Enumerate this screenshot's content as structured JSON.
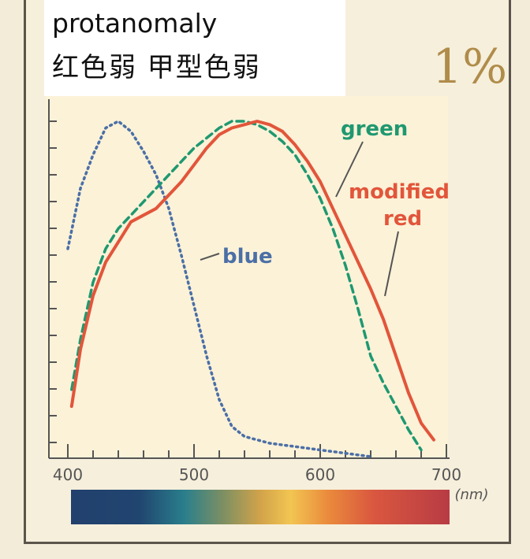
{
  "header": {
    "title_en": "protanomaly",
    "title_zh": "红色弱  甲型色弱",
    "percent": "1%"
  },
  "colors": {
    "blue_series": "#4b6fa6",
    "green_series": "#1f9870",
    "red_series": "#e2553a",
    "frame": "#5a544c",
    "percent": "#b08c4a"
  },
  "chart_data": {
    "type": "line",
    "x_unit": "(nm)",
    "xlim": [
      400,
      700
    ],
    "ylim": [
      0,
      1
    ],
    "x_ticks": [
      "400",
      "500",
      "600",
      "700"
    ],
    "grid": false,
    "legend": "inline labels",
    "series": [
      {
        "name": "blue",
        "style": "dotted",
        "x": [
          400,
          410,
          420,
          430,
          440,
          450,
          460,
          470,
          480,
          490,
          500,
          510,
          520,
          530,
          540,
          560,
          580,
          600,
          620,
          640
        ],
        "y": [
          0.62,
          0.8,
          0.9,
          0.98,
          1.0,
          0.97,
          0.91,
          0.84,
          0.74,
          0.6,
          0.45,
          0.3,
          0.17,
          0.09,
          0.06,
          0.04,
          0.03,
          0.02,
          0.01,
          0.0
        ]
      },
      {
        "name": "green",
        "style": "dashed",
        "x": [
          403,
          410,
          420,
          430,
          440,
          450,
          460,
          470,
          480,
          490,
          500,
          510,
          520,
          530,
          540,
          550,
          560,
          570,
          580,
          590,
          600,
          610,
          620,
          630,
          640,
          650,
          660,
          670,
          680
        ],
        "y": [
          0.2,
          0.35,
          0.52,
          0.62,
          0.68,
          0.72,
          0.76,
          0.8,
          0.84,
          0.88,
          0.92,
          0.95,
          0.98,
          1.0,
          1.0,
          0.99,
          0.97,
          0.94,
          0.9,
          0.84,
          0.77,
          0.68,
          0.57,
          0.44,
          0.3,
          0.22,
          0.15,
          0.08,
          0.02
        ]
      },
      {
        "name": "modified red",
        "style": "solid",
        "x": [
          403,
          410,
          420,
          430,
          440,
          450,
          460,
          470,
          480,
          490,
          500,
          510,
          520,
          530,
          540,
          550,
          560,
          570,
          580,
          590,
          600,
          610,
          620,
          630,
          640,
          650,
          660,
          670,
          680,
          690
        ],
        "y": [
          0.15,
          0.32,
          0.48,
          0.58,
          0.64,
          0.7,
          0.72,
          0.74,
          0.78,
          0.82,
          0.87,
          0.92,
          0.96,
          0.98,
          0.99,
          1.0,
          0.99,
          0.97,
          0.93,
          0.88,
          0.82,
          0.74,
          0.66,
          0.58,
          0.5,
          0.41,
          0.3,
          0.19,
          0.1,
          0.05
        ]
      }
    ],
    "annotations": [
      {
        "text": "green",
        "points_to": "green"
      },
      {
        "text": "modified",
        "points_to": "modified red"
      },
      {
        "text": "red",
        "points_to": "modified red"
      },
      {
        "text": "blue",
        "points_to": "blue"
      }
    ]
  }
}
